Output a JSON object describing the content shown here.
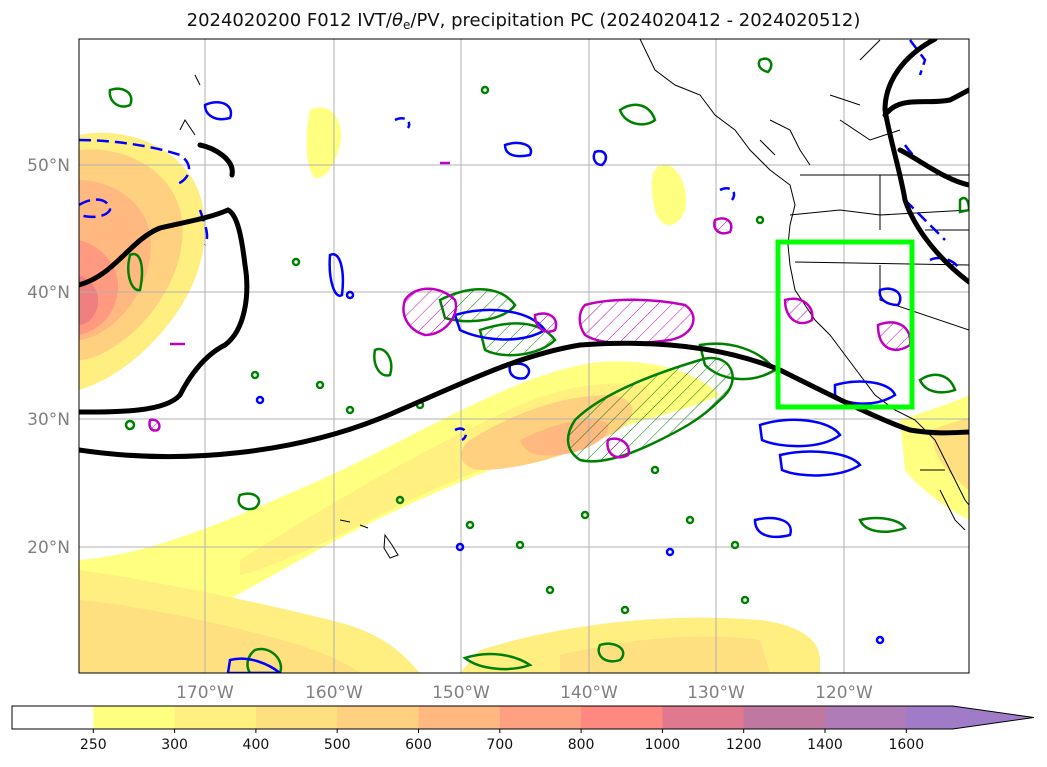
{
  "title": {
    "prefix": "2024020200 F012 IVT/",
    "theta": "θ",
    "theta_sub": "e",
    "suffix": "/PV, precipitation PC (2024020412 - 2024020512)"
  },
  "map": {
    "lon_labels": [
      "170°W",
      "160°W",
      "150°W",
      "140°W",
      "130°W",
      "120°W"
    ],
    "lat_labels": [
      "50°N",
      "40°N",
      "30°N",
      "20°N"
    ],
    "colors": {
      "pv_contour": "#000000",
      "theta_e_contour_pos": "#0000ff",
      "theta_e_contour_green": "#008000",
      "precip_pc_contour": "#c000c0",
      "highlight_box": "#00ff00",
      "gridline": "#b0b0b0",
      "coastline": "#000000"
    }
  },
  "colorbar": {
    "labels": [
      "250",
      "300",
      "400",
      "500",
      "600",
      "700",
      "800",
      "1000",
      "1200",
      "1400",
      "1600"
    ],
    "colors": [
      "#ffffff",
      "#ffff80",
      "#fff080",
      "#ffe080",
      "#ffd080",
      "#ffb880",
      "#ffa080",
      "#ff8880",
      "#e07890",
      "#c078a0",
      "#b07cb8",
      "#a07cc8"
    ]
  }
}
